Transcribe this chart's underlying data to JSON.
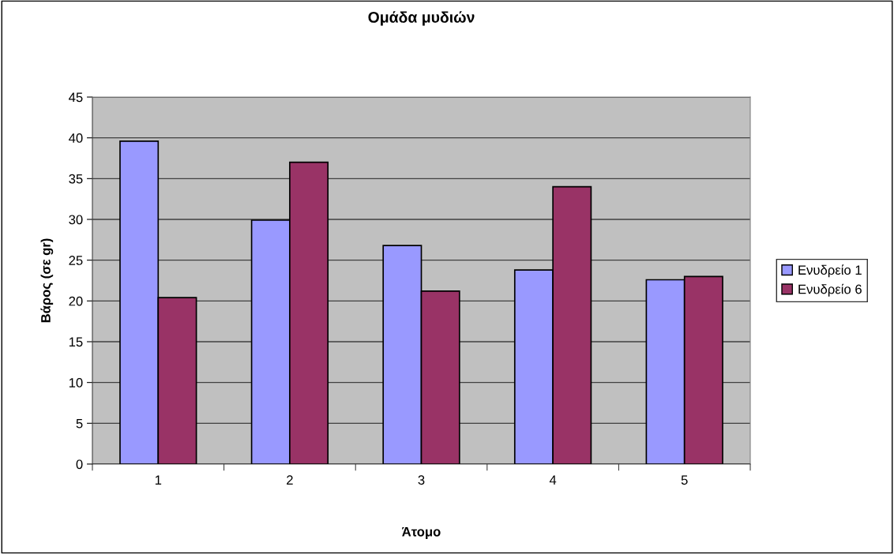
{
  "chart_data": {
    "type": "bar",
    "title": "Ομάδα μυδιών",
    "xlabel": "Άτομο",
    "ylabel": "Βάρος (σε gr)",
    "categories": [
      "1",
      "2",
      "3",
      "4",
      "5"
    ],
    "series": [
      {
        "name": "Ενυδρείο 1",
        "color": "#9999ff",
        "values": [
          39.6,
          29.9,
          26.8,
          23.8,
          22.6
        ]
      },
      {
        "name": "Ενυδρείο 6",
        "color": "#993366",
        "values": [
          20.4,
          37.0,
          21.2,
          34.0,
          23.0
        ]
      }
    ],
    "ylim": [
      0,
      45
    ],
    "yticks": [
      0,
      5,
      10,
      15,
      20,
      25,
      30,
      35,
      40,
      45
    ],
    "grid": "y",
    "legend": "right"
  }
}
